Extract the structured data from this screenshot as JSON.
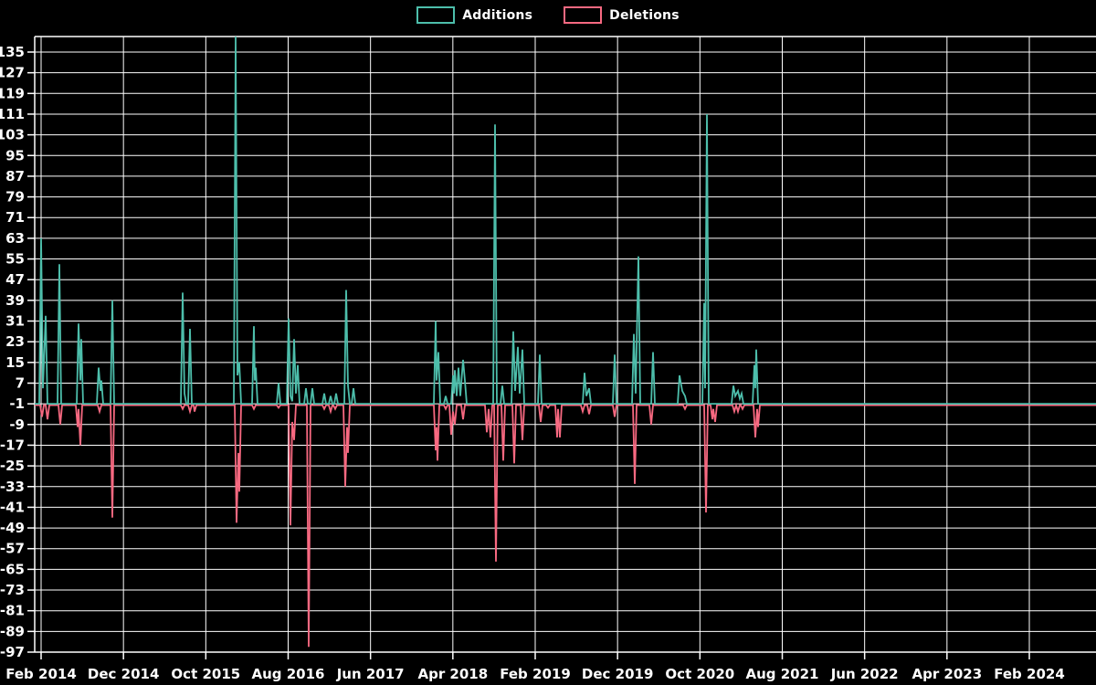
{
  "page": {
    "background_color": "#000000",
    "kind": "code-frequency-chart"
  },
  "chart_data": {
    "type": "line",
    "title": "",
    "xlabel": "",
    "ylabel": "",
    "grid": true,
    "legend_position": "top-center",
    "background": "#000000",
    "grid_color": "#ffffff",
    "text_color": "#ffffff",
    "baseline_value": -1,
    "ylim": [
      -97,
      141
    ],
    "y_ticks": [
      135,
      127,
      119,
      111,
      103,
      95,
      87,
      79,
      71,
      63,
      55,
      47,
      39,
      31,
      23,
      15,
      7,
      -1,
      -9,
      -17,
      -25,
      -33,
      -41,
      -49,
      -57,
      -65,
      -73,
      -81,
      -89,
      -97
    ],
    "x_tick_labels": [
      "Feb 2014",
      "Dec 2014",
      "Oct 2015",
      "Aug 2016",
      "Jun 2017",
      "Apr 2018",
      "Feb 2019",
      "Dec 2019",
      "Oct 2020",
      "Aug 2021",
      "Jun 2022",
      "Apr 2023",
      "Feb 2024"
    ],
    "legend": [
      {
        "label": "Additions",
        "color": "#4dbeab"
      },
      {
        "label": "Deletions",
        "color": "#f86981"
      }
    ],
    "series": [
      {
        "name": "Additions",
        "color": "#4dbeab",
        "points": [
          [
            38,
            -1
          ],
          [
            43,
            -1
          ],
          [
            45,
            63
          ],
          [
            47,
            5
          ],
          [
            50,
            33
          ],
          [
            52,
            -1
          ],
          [
            63,
            -1
          ],
          [
            65,
            53
          ],
          [
            67,
            -1
          ],
          [
            84,
            -1
          ],
          [
            86,
            30
          ],
          [
            88,
            8
          ],
          [
            89,
            24
          ],
          [
            91,
            -1
          ],
          [
            106,
            -1
          ],
          [
            108,
            13
          ],
          [
            110,
            4
          ],
          [
            111,
            8
          ],
          [
            113,
            -1
          ],
          [
            121,
            -1
          ],
          [
            123,
            39
          ],
          [
            125,
            -1
          ],
          [
            198,
            -1
          ],
          [
            200,
            42
          ],
          [
            202,
            3
          ],
          [
            204,
            -1
          ],
          [
            206,
            -1
          ],
          [
            208,
            28
          ],
          [
            210,
            -1
          ],
          [
            256,
            -1
          ],
          [
            258,
            141
          ],
          [
            260,
            10
          ],
          [
            262,
            15
          ],
          [
            264,
            -1
          ],
          [
            276,
            -1
          ],
          [
            278,
            29
          ],
          [
            279,
            8
          ],
          [
            280,
            13
          ],
          [
            282,
            -1
          ],
          [
            303,
            -1
          ],
          [
            305,
            7
          ],
          [
            307,
            -1
          ],
          [
            314,
            -1
          ],
          [
            316,
            32
          ],
          [
            318,
            2
          ],
          [
            320,
            0
          ],
          [
            322,
            24
          ],
          [
            324,
            3
          ],
          [
            326,
            14
          ],
          [
            328,
            -1
          ],
          [
            333,
            -1
          ],
          [
            335,
            5
          ],
          [
            337,
            -1
          ],
          [
            340,
            -1
          ],
          [
            342,
            5
          ],
          [
            344,
            -1
          ],
          [
            353,
            -1
          ],
          [
            355,
            3
          ],
          [
            357,
            -1
          ],
          [
            360,
            -1
          ],
          [
            362,
            2
          ],
          [
            364,
            -1
          ],
          [
            366,
            -1
          ],
          [
            368,
            3
          ],
          [
            370,
            -1
          ],
          [
            377,
            -1
          ],
          [
            379,
            43
          ],
          [
            381,
            6
          ],
          [
            383,
            -1
          ],
          [
            385,
            -1
          ],
          [
            387,
            5
          ],
          [
            389,
            -1
          ],
          [
            475,
            -1
          ],
          [
            477,
            31
          ],
          [
            478,
            8
          ],
          [
            480,
            19
          ],
          [
            482,
            -1
          ],
          [
            486,
            -1
          ],
          [
            488,
            2
          ],
          [
            490,
            -1
          ],
          [
            494,
            -1
          ],
          [
            496,
            10
          ],
          [
            497,
            3
          ],
          [
            498,
            12
          ],
          [
            500,
            2
          ],
          [
            502,
            13
          ],
          [
            504,
            2
          ],
          [
            507,
            16
          ],
          [
            509,
            8
          ],
          [
            511,
            -1
          ],
          [
            540,
            -1
          ],
          [
            542,
            107
          ],
          [
            544,
            -1
          ],
          [
            548,
            -1
          ],
          [
            550,
            6
          ],
          [
            552,
            -1
          ],
          [
            560,
            -1
          ],
          [
            562,
            27
          ],
          [
            564,
            4
          ],
          [
            567,
            21
          ],
          [
            569,
            3
          ],
          [
            572,
            20
          ],
          [
            574,
            -1
          ],
          [
            589,
            -1
          ],
          [
            591,
            18
          ],
          [
            593,
            -1
          ],
          [
            638,
            -1
          ],
          [
            640,
            11
          ],
          [
            642,
            2
          ],
          [
            645,
            5
          ],
          [
            647,
            -1
          ],
          [
            671,
            -1
          ],
          [
            673,
            18
          ],
          [
            675,
            -1
          ],
          [
            692,
            -1
          ],
          [
            694,
            26
          ],
          [
            696,
            3
          ],
          [
            699,
            56
          ],
          [
            701,
            -1
          ],
          [
            713,
            -1
          ],
          [
            715,
            19
          ],
          [
            717,
            -1
          ],
          [
            742,
            -1
          ],
          [
            744,
            10
          ],
          [
            747,
            4
          ],
          [
            750,
            2
          ],
          [
            752,
            -1
          ],
          [
            769,
            -1
          ],
          [
            771,
            38
          ],
          [
            772,
            5
          ],
          [
            774,
            111
          ],
          [
            776,
            -1
          ],
          [
            801,
            -1
          ],
          [
            803,
            6
          ],
          [
            805,
            2
          ],
          [
            808,
            4
          ],
          [
            810,
            1
          ],
          [
            812,
            3
          ],
          [
            814,
            -1
          ],
          [
            824,
            -1
          ],
          [
            826,
            14
          ],
          [
            827,
            5
          ],
          [
            828,
            20
          ],
          [
            830,
            -1
          ],
          [
            1200,
            -1
          ]
        ]
      },
      {
        "name": "Deletions",
        "color": "#f86981",
        "points": [
          [
            38,
            -1.5
          ],
          [
            44,
            -1.5
          ],
          [
            46,
            -6
          ],
          [
            48,
            -1.5
          ],
          [
            50,
            -1.5
          ],
          [
            52,
            -7
          ],
          [
            54,
            -1.5
          ],
          [
            64,
            -1.5
          ],
          [
            66,
            -9
          ],
          [
            68,
            -1.5
          ],
          [
            83,
            -1.5
          ],
          [
            85,
            -10
          ],
          [
            86,
            -3
          ],
          [
            88,
            -17
          ],
          [
            90,
            -1.5
          ],
          [
            107,
            -1.5
          ],
          [
            109,
            -4
          ],
          [
            111,
            -1.5
          ],
          [
            121,
            -1.5
          ],
          [
            123,
            -45
          ],
          [
            125,
            -1.5
          ],
          [
            198,
            -1.5
          ],
          [
            200,
            -3
          ],
          [
            202,
            -1.5
          ],
          [
            206,
            -1.5
          ],
          [
            208,
            -4
          ],
          [
            210,
            -1.5
          ],
          [
            212,
            -1.5
          ],
          [
            213,
            -4
          ],
          [
            215,
            -1.5
          ],
          [
            257,
            -1.5
          ],
          [
            259,
            -47
          ],
          [
            261,
            -20
          ],
          [
            262,
            -35
          ],
          [
            264,
            -1.5
          ],
          [
            276,
            -1.5
          ],
          [
            278,
            -3
          ],
          [
            280,
            -1.5
          ],
          [
            303,
            -1.5
          ],
          [
            305,
            -2.5
          ],
          [
            307,
            -1.5
          ],
          [
            316,
            -1.5
          ],
          [
            318,
            -48
          ],
          [
            320,
            -8
          ],
          [
            322,
            -15
          ],
          [
            324,
            -1.5
          ],
          [
            336,
            -1.5
          ],
          [
            338,
            -95
          ],
          [
            340,
            -1.5
          ],
          [
            353,
            -1.5
          ],
          [
            355,
            -3
          ],
          [
            357,
            -1.5
          ],
          [
            360,
            -1.5
          ],
          [
            362,
            -4
          ],
          [
            364,
            -1.5
          ],
          [
            365,
            -1.5
          ],
          [
            367,
            -3
          ],
          [
            369,
            -1.5
          ],
          [
            376,
            -1.5
          ],
          [
            378,
            -33
          ],
          [
            380,
            -10
          ],
          [
            381,
            -20
          ],
          [
            383,
            -1.5
          ],
          [
            475,
            -1.5
          ],
          [
            477,
            -19
          ],
          [
            478,
            -10
          ],
          [
            479,
            -23
          ],
          [
            481,
            -1.5
          ],
          [
            486,
            -1.5
          ],
          [
            488,
            -3
          ],
          [
            490,
            -1.5
          ],
          [
            492,
            -1.5
          ],
          [
            494,
            -13
          ],
          [
            496,
            -4
          ],
          [
            498,
            -9
          ],
          [
            500,
            -1.5
          ],
          [
            505,
            -1.5
          ],
          [
            507,
            -7
          ],
          [
            509,
            -1.5
          ],
          [
            531,
            -1.5
          ],
          [
            533,
            -12
          ],
          [
            535,
            -3
          ],
          [
            537,
            -14
          ],
          [
            539,
            -1.5
          ],
          [
            541,
            -1.5
          ],
          [
            543,
            -62
          ],
          [
            545,
            -1.5
          ],
          [
            549,
            -1.5
          ],
          [
            551,
            -23
          ],
          [
            553,
            -1.5
          ],
          [
            561,
            -1.5
          ],
          [
            563,
            -24
          ],
          [
            565,
            -1.5
          ],
          [
            570,
            -1.5
          ],
          [
            572,
            -15
          ],
          [
            574,
            -1.5
          ],
          [
            590,
            -1.5
          ],
          [
            592,
            -8
          ],
          [
            594,
            -1.5
          ],
          [
            598,
            -1.5
          ],
          [
            600,
            -2.5
          ],
          [
            602,
            -1.5
          ],
          [
            608,
            -1.5
          ],
          [
            610,
            -14
          ],
          [
            611,
            -3
          ],
          [
            613,
            -14
          ],
          [
            615,
            -1.5
          ],
          [
            636,
            -1.5
          ],
          [
            638,
            -4
          ],
          [
            640,
            -1.5
          ],
          [
            643,
            -1.5
          ],
          [
            645,
            -5
          ],
          [
            647,
            -1.5
          ],
          [
            671,
            -1.5
          ],
          [
            673,
            -6
          ],
          [
            675,
            -1.5
          ],
          [
            693,
            -1.5
          ],
          [
            695,
            -32
          ],
          [
            697,
            -1.5
          ],
          [
            711,
            -1.5
          ],
          [
            713,
            -9
          ],
          [
            715,
            -1.5
          ],
          [
            748,
            -1.5
          ],
          [
            750,
            -3
          ],
          [
            752,
            -1.5
          ],
          [
            771,
            -1.5
          ],
          [
            773,
            -43
          ],
          [
            775,
            -1.5
          ],
          [
            778,
            -1.5
          ],
          [
            780,
            -7
          ],
          [
            781,
            -3
          ],
          [
            783,
            -8
          ],
          [
            785,
            -1.5
          ],
          [
            802,
            -1.5
          ],
          [
            804,
            -4
          ],
          [
            806,
            -1.5
          ],
          [
            808,
            -4
          ],
          [
            810,
            -1.5
          ],
          [
            811,
            -1.5
          ],
          [
            813,
            -3
          ],
          [
            815,
            -1.5
          ],
          [
            825,
            -1.5
          ],
          [
            827,
            -14
          ],
          [
            829,
            -3
          ],
          [
            830,
            -10
          ],
          [
            832,
            -1.5
          ],
          [
            1200,
            -1.5
          ]
        ]
      }
    ]
  }
}
